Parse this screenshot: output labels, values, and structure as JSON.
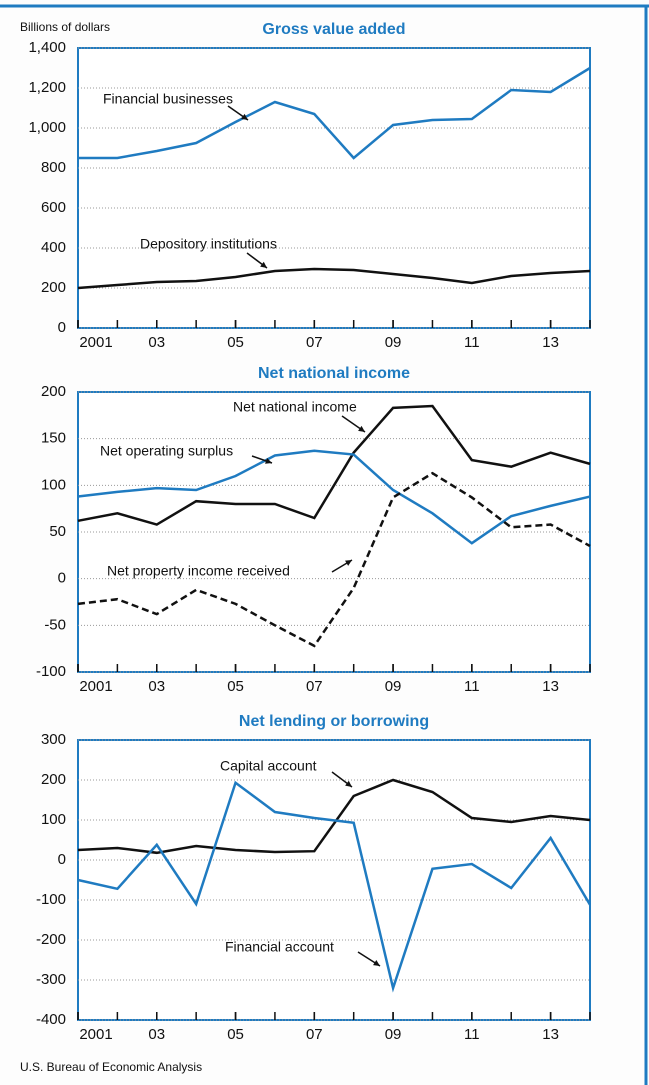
{
  "y_axis_label": "Billions of dollars",
  "source": "U.S. Bureau of Economic Analysis",
  "chart_data": [
    {
      "type": "line",
      "title": "Gross value added",
      "x": [
        2001,
        2002,
        2003,
        2004,
        2005,
        2006,
        2007,
        2008,
        2009,
        2010,
        2011,
        2012,
        2013,
        2014
      ],
      "xlim": [
        2001,
        2014
      ],
      "xticks": [
        {
          "value": 2001,
          "label": "2001"
        },
        {
          "value": 2003,
          "label": "03"
        },
        {
          "value": 2005,
          "label": "05"
        },
        {
          "value": 2007,
          "label": "07"
        },
        {
          "value": 2009,
          "label": "09"
        },
        {
          "value": 2011,
          "label": "11"
        },
        {
          "value": 2013,
          "label": "13"
        }
      ],
      "ylim": [
        0,
        1400
      ],
      "yticks": [
        0,
        200,
        400,
        600,
        800,
        {
          "value": 1000,
          "label": "1,000"
        },
        {
          "value": 1200,
          "label": "1,200"
        },
        {
          "value": 1400,
          "label": "1,400"
        }
      ],
      "grid": true,
      "series": [
        {
          "name": "Financial businesses",
          "color": "#1f7bc1",
          "values": [
            850,
            850,
            885,
            925,
            1030,
            1130,
            1070,
            850,
            1015,
            1040,
            1045,
            1190,
            1180,
            1300
          ]
        },
        {
          "name": "Depository institutions",
          "color": "#111111",
          "values": [
            200,
            215,
            230,
            235,
            255,
            285,
            295,
            290,
            270,
            250,
            225,
            260,
            275,
            285
          ]
        }
      ]
    },
    {
      "type": "line",
      "title": "Net national income",
      "x": [
        2001,
        2002,
        2003,
        2004,
        2005,
        2006,
        2007,
        2008,
        2009,
        2010,
        2011,
        2012,
        2013,
        2014
      ],
      "xlim": [
        2001,
        2014
      ],
      "xticks": [
        {
          "value": 2001,
          "label": "2001"
        },
        {
          "value": 2003,
          "label": "03"
        },
        {
          "value": 2005,
          "label": "05"
        },
        {
          "value": 2007,
          "label": "07"
        },
        {
          "value": 2009,
          "label": "09"
        },
        {
          "value": 2011,
          "label": "11"
        },
        {
          "value": 2013,
          "label": "13"
        }
      ],
      "ylim": [
        -100,
        200
      ],
      "yticks": [
        -100,
        -50,
        0,
        50,
        100,
        150,
        200
      ],
      "grid": true,
      "series": [
        {
          "name": "Net national income",
          "color": "#111111",
          "values": [
            62,
            70,
            58,
            83,
            80,
            80,
            65,
            135,
            183,
            185,
            127,
            120,
            135,
            123
          ]
        },
        {
          "name": "Net operating surplus",
          "color": "#1f7bc1",
          "values": [
            88,
            93,
            97,
            95,
            110,
            132,
            137,
            133,
            95,
            70,
            38,
            67,
            78,
            88
          ]
        },
        {
          "name": "Net property income received",
          "color": "#111111",
          "dashed": true,
          "values": [
            -27,
            -22,
            -38,
            -12,
            -27,
            -50,
            -72,
            -10,
            87,
            113,
            87,
            55,
            58,
            35
          ]
        }
      ]
    },
    {
      "type": "line",
      "title": "Net lending or borrowing",
      "x": [
        2001,
        2002,
        2003,
        2004,
        2005,
        2006,
        2007,
        2008,
        2009,
        2010,
        2011,
        2012,
        2013,
        2014
      ],
      "xlim": [
        2001,
        2014
      ],
      "xticks": [
        {
          "value": 2001,
          "label": "2001"
        },
        {
          "value": 2003,
          "label": "03"
        },
        {
          "value": 2005,
          "label": "05"
        },
        {
          "value": 2007,
          "label": "07"
        },
        {
          "value": 2009,
          "label": "09"
        },
        {
          "value": 2011,
          "label": "11"
        },
        {
          "value": 2013,
          "label": "13"
        }
      ],
      "ylim": [
        -400,
        300
      ],
      "yticks": [
        -400,
        -300,
        -200,
        -100,
        0,
        100,
        200,
        300
      ],
      "grid": true,
      "series": [
        {
          "name": "Capital account",
          "color": "#111111",
          "values": [
            25,
            30,
            18,
            35,
            25,
            20,
            22,
            160,
            200,
            170,
            105,
            95,
            110,
            100
          ]
        },
        {
          "name": "Financial account",
          "color": "#1f7bc1",
          "values": [
            -50,
            -72,
            38,
            -110,
            193,
            120,
            105,
            93,
            -320,
            -22,
            -10,
            -70,
            55,
            -112
          ]
        }
      ]
    }
  ]
}
